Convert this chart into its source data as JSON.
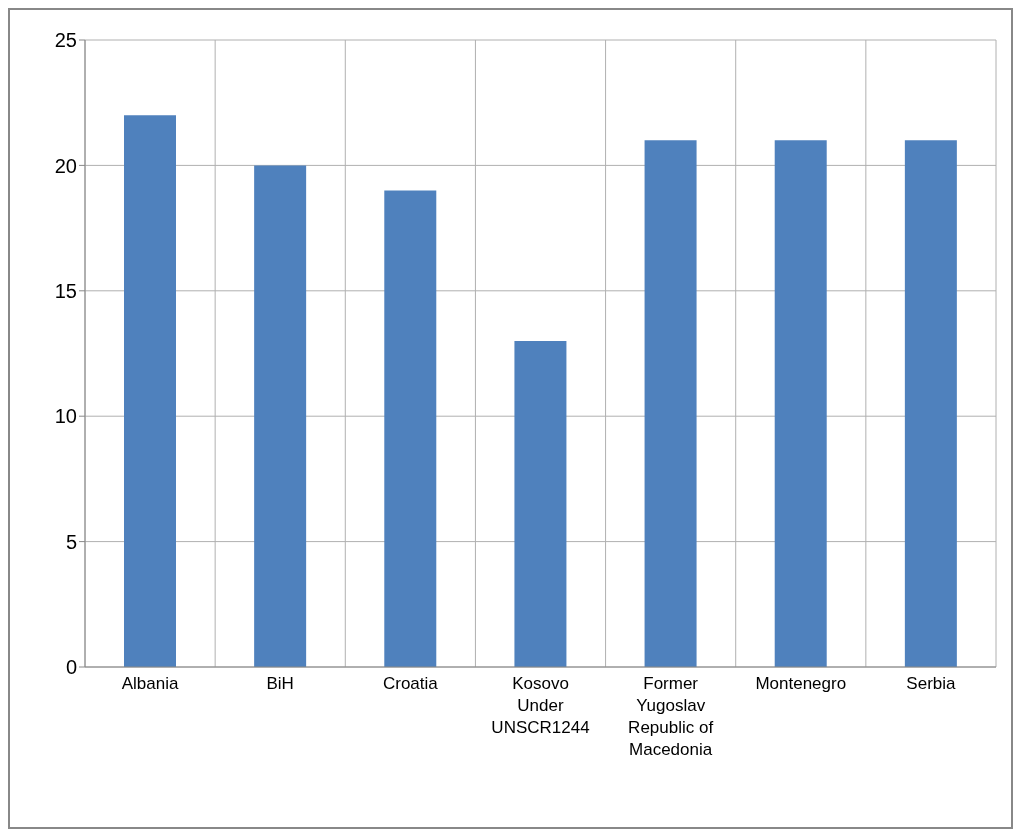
{
  "chart_data": {
    "type": "bar",
    "categories": [
      "Albania",
      "BiH",
      "Croatia",
      "Kosovo Under UNSCR1244",
      "Former Yugoslav Republic of Macedonia",
      "Montenegro",
      "Serbia"
    ],
    "values": [
      22,
      20,
      19,
      13,
      21,
      21,
      21
    ],
    "color": "#4f81bd",
    "ylim": [
      0,
      25
    ],
    "yticks": [
      0,
      5,
      10,
      15,
      20,
      25
    ],
    "grid": true
  }
}
